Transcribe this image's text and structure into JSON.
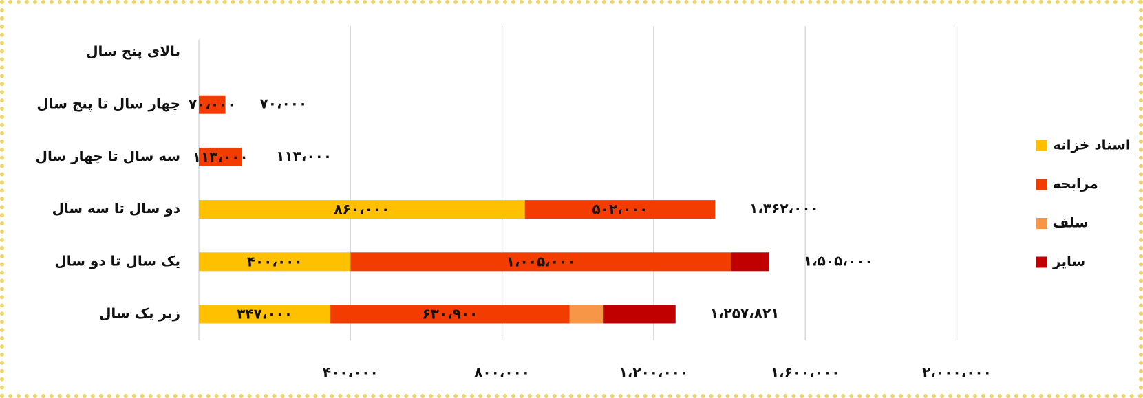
{
  "chart_data": {
    "type": "stacked-bar-horizontal",
    "categories": [
      "زیر یک سال",
      "یک سال تا دو سال",
      "دو سال تا سه سال",
      "سه سال تا چهار سال",
      "چهار سال تا پنج سال",
      "بالای پنج سال"
    ],
    "series": [
      {
        "name": "اسناد خزانه",
        "color": "#ffc000",
        "values": [
          347000,
          400000,
          860000,
          null,
          null,
          null
        ],
        "value_labels": [
          "۳۴۷،۰۰۰",
          "۴۰۰،۰۰۰",
          "۸۶۰،۰۰۰",
          null,
          null,
          null
        ]
      },
      {
        "name": "مرابحه",
        "color": "#f23c00",
        "values": [
          630900,
          1005000,
          502000,
          113000,
          70000,
          null
        ],
        "value_labels": [
          "۶۳۰،۹۰۰",
          "۱،۰۰۵،۰۰۰",
          "۵۰۲،۰۰۰",
          "۱۱۳،۰۰۰",
          "۷۰،۰۰۰",
          null
        ]
      },
      {
        "name": "سلف",
        "color": "#f79646",
        "values": [
          90000,
          null,
          null,
          null,
          null,
          null
        ]
      },
      {
        "name": "سایر",
        "color": "#c00000",
        "values": [
          189921,
          100000,
          null,
          null,
          null,
          null
        ]
      }
    ],
    "totals": [
      1257821,
      1505000,
      1362000,
      113000,
      70000,
      null
    ],
    "total_labels": [
      "۱،۲۵۷،۸۲۱",
      "۱،۵۰۵،۰۰۰",
      "۱،۳۶۲،۰۰۰",
      "۱۱۳،۰۰۰",
      "۷۰،۰۰۰",
      null
    ],
    "xlim": [
      0,
      2000000
    ],
    "xticks": [
      {
        "value": 400000,
        "label": "۴۰۰،۰۰۰"
      },
      {
        "value": 800000,
        "label": "۸۰۰،۰۰۰"
      },
      {
        "value": 1200000,
        "label": "۱،۲۰۰،۰۰۰"
      },
      {
        "value": 1600000,
        "label": "۱،۶۰۰،۰۰۰"
      },
      {
        "value": 2000000,
        "label": "۲،۰۰۰،۰۰۰"
      }
    ],
    "grid": true,
    "legend": "right"
  }
}
